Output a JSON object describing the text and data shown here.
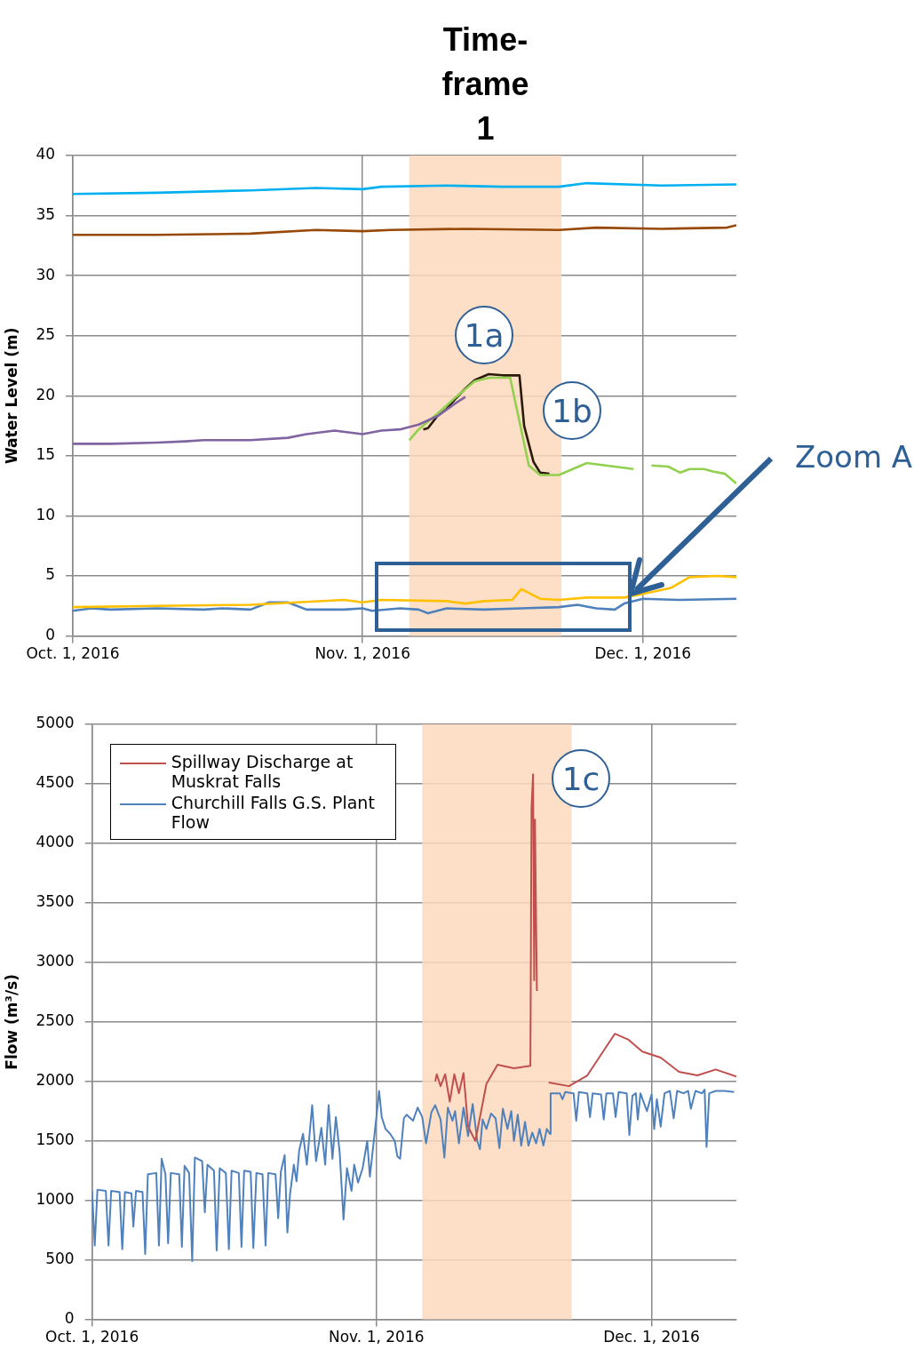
{
  "chart_data": [
    {
      "type": "line",
      "ylabel": "Water Level (m)",
      "xlim": [
        "2016-10-01",
        "2016-12-11"
      ],
      "xticks": [
        {
          "value": "2016-10-01",
          "label": "Oct. 1, 2016"
        },
        {
          "value": "2016-11-01",
          "label": "Nov. 1, 2016"
        },
        {
          "value": "2016-12-01",
          "label": "Dec. 1, 2016"
        }
      ],
      "ylim": [
        0,
        40
      ],
      "yticks": [
        0,
        5,
        10,
        15,
        20,
        25,
        30,
        35,
        40
      ],
      "grid": true,
      "legend": false,
      "bands": [
        {
          "axis": "x",
          "from": "2016-11-06",
          "to": "2016-11-22T07:00",
          "label": "Time-frame 1",
          "color": "#fcd9bc"
        }
      ],
      "annotations": [
        "1a",
        "1b",
        "Zoom A"
      ],
      "series": [
        {
          "color": "#00b0f0",
          "x": [
            "2016-10-01",
            "2016-10-10",
            "2016-10-20",
            "2016-10-27",
            "2016-11-01",
            "2016-11-03",
            "2016-11-10",
            "2016-11-16",
            "2016-11-22",
            "2016-11-25",
            "2016-12-03",
            "2016-12-11"
          ],
          "values": [
            36.8,
            36.9,
            37.1,
            37.3,
            37.2,
            37.4,
            37.5,
            37.4,
            37.4,
            37.7,
            37.5,
            37.6
          ]
        },
        {
          "color": "#984807",
          "x": [
            "2016-10-01",
            "2016-10-10",
            "2016-10-20",
            "2016-10-27",
            "2016-11-01",
            "2016-11-04",
            "2016-11-12",
            "2016-11-22",
            "2016-11-26",
            "2016-12-03",
            "2016-12-10",
            "2016-12-11"
          ],
          "values": [
            33.4,
            33.4,
            33.5,
            33.8,
            33.7,
            33.8,
            33.9,
            33.8,
            34.0,
            33.9,
            34.0,
            34.2
          ]
        },
        {
          "color": "#8064a2",
          "x": [
            "2016-10-01",
            "2016-10-05",
            "2016-10-10",
            "2016-10-13",
            "2016-10-15",
            "2016-10-20",
            "2016-10-24",
            "2016-10-26",
            "2016-10-29",
            "2016-11-01",
            "2016-11-03",
            "2016-11-05",
            "2016-11-07",
            "2016-11-09",
            "2016-11-11",
            "2016-11-12"
          ],
          "values": [
            16.0,
            16.0,
            16.1,
            16.2,
            16.3,
            16.3,
            16.5,
            16.8,
            17.1,
            16.8,
            17.1,
            17.2,
            17.6,
            18.3,
            19.4,
            19.9
          ]
        },
        {
          "color": "#92d050",
          "x": [
            "2016-11-06",
            "2016-11-07",
            "2016-11-09",
            "2016-11-11",
            "2016-11-13",
            "2016-11-14T14:00",
            "2016-11-16T19:00",
            "2016-11-18T19:00",
            "2016-11-20",
            "2016-11-22",
            "2016-11-25",
            "2016-11-30",
            "2016-11-30T12:00",
            "2016-12-01T22:00",
            "2016-12-03T17:00",
            "2016-12-05",
            "2016-12-06",
            "2016-12-07T12:00",
            "2016-12-08T12:00",
            "2016-12-09T19:00",
            "2016-12-11"
          ],
          "values": [
            16.3,
            17.2,
            18.5,
            19.9,
            21.2,
            21.5,
            21.5,
            14.2,
            13.4,
            13.4,
            14.4,
            13.9,
            null,
            14.2,
            14.1,
            13.6,
            13.9,
            13.9,
            13.7,
            13.5,
            12.7
          ]
        },
        {
          "color": "#2a1a0a",
          "x": [
            "2016-11-07T12:00",
            "2016-11-08",
            "2016-11-09",
            "2016-11-10",
            "2016-11-11",
            "2016-11-12",
            "2016-11-13",
            "2016-11-14T12:00",
            "2016-11-16",
            "2016-11-17T19:00",
            "2016-11-18T07:00",
            "2016-11-19T07:00",
            "2016-11-20",
            "2016-11-21"
          ],
          "values": [
            17.2,
            17.3,
            18.3,
            18.9,
            19.8,
            20.6,
            21.3,
            21.8,
            21.7,
            21.7,
            17.5,
            14.5,
            13.6,
            13.5
          ]
        },
        {
          "color": "#ffc000",
          "x": [
            "2016-10-01",
            "2016-10-10",
            "2016-10-20",
            "2016-10-30",
            "2016-11-01",
            "2016-11-03",
            "2016-11-10",
            "2016-11-12",
            "2016-11-14",
            "2016-11-17",
            "2016-11-18",
            "2016-11-20",
            "2016-11-22",
            "2016-11-25",
            "2016-11-29",
            "2016-12-01",
            "2016-12-04",
            "2016-12-06",
            "2016-12-09",
            "2016-12-11"
          ],
          "values": [
            2.4,
            2.5,
            2.6,
            3.0,
            2.8,
            3.0,
            2.9,
            2.7,
            2.9,
            3.0,
            3.9,
            3.1,
            3.0,
            3.2,
            3.2,
            3.5,
            4.0,
            4.9,
            5.0,
            4.9
          ]
        },
        {
          "color": "#4f81bd",
          "x": [
            "2016-10-01",
            "2016-10-03",
            "2016-10-05",
            "2016-10-10",
            "2016-10-15",
            "2016-10-17",
            "2016-10-20",
            "2016-10-22",
            "2016-10-24",
            "2016-10-26",
            "2016-10-30",
            "2016-11-01",
            "2016-11-02",
            "2016-11-05",
            "2016-11-07",
            "2016-11-08",
            "2016-11-10",
            "2016-11-14",
            "2016-11-18",
            "2016-11-22",
            "2016-11-24",
            "2016-11-26",
            "2016-11-28",
            "2016-11-29",
            "2016-12-01",
            "2016-12-05",
            "2016-12-11"
          ],
          "values": [
            2.1,
            2.3,
            2.2,
            2.3,
            2.2,
            2.3,
            2.2,
            2.8,
            2.8,
            2.2,
            2.2,
            2.3,
            2.1,
            2.3,
            2.2,
            1.9,
            2.3,
            2.2,
            2.3,
            2.4,
            2.6,
            2.3,
            2.2,
            2.7,
            3.1,
            3.0,
            3.1
          ]
        }
      ]
    },
    {
      "type": "line",
      "ylabel": "Flow (m³/s)",
      "xlim": [
        "2016-10-01",
        "2016-12-10T06:00"
      ],
      "xticks": [
        {
          "value": "2016-10-01",
          "label": "Oct. 1, 2016"
        },
        {
          "value": "2016-11-01",
          "label": "Nov. 1, 2016"
        },
        {
          "value": "2016-12-01",
          "label": "Dec. 1, 2016"
        }
      ],
      "ylim": [
        0,
        5000
      ],
      "yticks": [
        0,
        500,
        1000,
        1500,
        2000,
        2500,
        3000,
        3500,
        4000,
        4500,
        5000
      ],
      "grid": true,
      "legend": "top left",
      "bands": [
        {
          "axis": "x",
          "from": "2016-11-06",
          "to": "2016-11-22T07:00",
          "color": "#fcd9bc"
        }
      ],
      "annotations": [
        "1c"
      ],
      "series": [
        {
          "name": "Spillway Discharge at Muskrat Falls",
          "color": "#c0504d",
          "x": [
            "2016-11-07T10:00",
            "2016-11-07T14:00",
            "2016-11-08",
            "2016-11-08T12:00",
            "2016-11-09",
            "2016-11-09T12:00",
            "2016-11-10",
            "2016-11-10T12:00",
            "2016-11-11",
            "2016-11-11T19:00",
            "2016-11-13",
            "2016-11-14T05:00",
            "2016-11-16",
            "2016-11-17T19:00",
            "2016-11-17T22:00",
            "2016-11-18T02:00",
            "2016-11-18T05:00",
            "2016-11-18T07:00",
            "2016-11-18T12:00",
            "2016-11-19",
            "2016-11-19T19:00",
            "2016-11-22",
            "2016-11-24",
            "2016-11-27",
            "2016-11-28T12:00",
            "2016-11-30",
            "2016-12-02",
            "2016-12-04",
            "2016-12-06",
            "2016-12-08",
            "2016-12-10T06:00"
          ],
          "values": [
            2000,
            2060,
            1960,
            2060,
            1830,
            2060,
            1900,
            2070,
            1620,
            1500,
            1980,
            2140,
            2110,
            2130,
            4300,
            4580,
            2850,
            4200,
            2760,
            null,
            1990,
            1960,
            2050,
            2400,
            2350,
            2250,
            2200,
            2080,
            2050,
            2100,
            2040
          ]
        },
        {
          "name": "Churchill Falls G.S. Plant Flow",
          "color": "#4f81bd",
          "x": [
            "2016-10-01",
            "2016-10-01T07:00",
            "2016-10-01T14:00",
            "2016-10-02T12:00",
            "2016-10-02T19:00",
            "2016-10-03T02:00",
            "2016-10-04",
            "2016-10-04T07:00",
            "2016-10-04T14:00",
            "2016-10-05T07:00",
            "2016-10-05T12:00",
            "2016-10-05T19:00",
            "2016-10-06T12:00",
            "2016-10-06T19:00",
            "2016-10-07T02:00",
            "2016-10-08",
            "2016-10-08T07:00",
            "2016-10-08T14:00",
            "2016-10-09",
            "2016-10-09T07:00",
            "2016-10-09T14:00",
            "2016-10-10T12:00",
            "2016-10-10T19:00",
            "2016-10-11T02:00",
            "2016-10-11T14:00",
            "2016-10-11T22:00",
            "2016-10-12T05:00",
            "2016-10-13",
            "2016-10-13T07:00",
            "2016-10-13T14:00",
            "2016-10-14T07:00",
            "2016-10-14T14:00",
            "2016-10-14T22:00",
            "2016-10-15T14:00",
            "2016-10-15T22:00",
            "2016-10-16T05:00",
            "2016-10-17",
            "2016-10-17T07:00",
            "2016-10-17T14:00",
            "2016-10-18T07:00",
            "2016-10-18T14:00",
            "2016-10-18T22:00",
            "2016-10-19T14:00",
            "2016-10-19T22:00",
            "2016-10-20T05:00",
            "2016-10-21",
            "2016-10-21T07:00",
            "2016-10-21T14:00",
            "2016-10-22",
            "2016-10-22T07:00",
            "2016-10-22T14:00",
            "2016-10-23",
            "2016-10-23T07:00",
            "2016-10-23T14:00",
            "2016-10-24",
            "2016-10-24T10:00",
            "2016-10-25",
            "2016-10-25T10:00",
            "2016-10-26",
            "2016-10-26T10:00",
            "2016-10-26T19:00",
            "2016-10-27T05:00",
            "2016-10-27T14:00",
            "2016-10-28",
            "2016-10-28T10:00",
            "2016-10-28T19:00",
            "2016-10-29T07:00",
            "2016-10-29T14:00",
            "2016-10-30",
            "2016-10-30T12:00",
            "2016-10-31",
            "2016-10-31T07:00",
            "2016-11-01",
            "2016-11-01T07:00",
            "2016-11-01T14:00",
            "2016-11-02",
            "2016-11-02T12:00",
            "2016-11-03",
            "2016-11-03T07:00",
            "2016-11-03T14:00",
            "2016-11-04",
            "2016-11-04T07:00",
            "2016-11-05",
            "2016-11-05T12:00",
            "2016-11-06",
            "2016-11-06T10:00",
            "2016-11-07",
            "2016-11-07T10:00",
            "2016-11-08",
            "2016-11-08T10:00",
            "2016-11-08T19:00",
            "2016-11-09T07:00",
            "2016-11-09T14:00",
            "2016-11-10",
            "2016-11-10T12:00",
            "2016-11-11",
            "2016-11-11T12:00",
            "2016-11-12",
            "2016-11-12T07:00",
            "2016-11-12T14:00",
            "2016-11-13",
            "2016-11-13T12:00",
            "2016-11-14",
            "2016-11-14T10:00",
            "2016-11-14T19:00",
            "2016-11-15T07:00",
            "2016-11-15T17:00",
            "2016-11-16",
            "2016-11-16T10:00",
            "2016-11-16T19:00",
            "2016-11-17T05:00",
            "2016-11-17T14:00",
            "2016-11-18",
            "2016-11-18T10:00",
            "2016-11-18T19:00",
            "2016-11-19T05:00",
            "2016-11-19T14:00",
            "2016-11-19T22:00",
            "2016-11-20",
            "2016-11-21",
            "2016-11-21T07:00",
            "2016-11-21T14:00",
            "2016-11-22T12:00",
            "2016-11-22T19:00",
            "2016-11-23T02:00",
            "2016-11-24",
            "2016-11-24T07:00",
            "2016-11-24T14:00",
            "2016-11-25T12:00",
            "2016-11-25T19:00",
            "2016-11-26T02:00",
            "2016-11-26T19:00",
            "2016-11-27T02:00",
            "2016-11-27T10:00",
            "2016-11-28T07:00",
            "2016-11-28T14:00",
            "2016-11-28T22:00",
            "2016-11-29T07:00",
            "2016-11-29T12:00",
            "2016-11-29T19:00",
            "2016-11-30T12:00",
            "2016-12-01",
            "2016-12-01T07:00",
            "2016-12-01T14:00",
            "2016-12-02",
            "2016-12-02T10:00",
            "2016-12-03",
            "2016-12-03T10:00",
            "2016-12-03T19:00",
            "2016-12-04T12:00",
            "2016-12-05",
            "2016-12-05T07:00",
            "2016-12-05T19:00",
            "2016-12-06T12:00",
            "2016-12-06T19:00",
            "2016-12-07",
            "2016-12-07T07:00",
            "2016-12-08",
            "2016-12-09",
            "2016-12-10"
          ],
          "values": [
            1080,
            620,
            1090,
            1080,
            620,
            1080,
            1070,
            590,
            1070,
            1060,
            780,
            1080,
            1070,
            550,
            1220,
            1230,
            620,
            1350,
            1220,
            640,
            1230,
            1220,
            610,
            1290,
            1230,
            490,
            1360,
            1330,
            900,
            1300,
            1250,
            580,
            1270,
            1230,
            590,
            1250,
            1230,
            610,
            1250,
            1240,
            600,
            1230,
            1220,
            620,
            1230,
            1220,
            850,
            1240,
            1380,
            730,
            1050,
            1300,
            1160,
            1420,
            1560,
            1300,
            1800,
            1330,
            1610,
            1300,
            1800,
            1350,
            1700,
            1400,
            840,
            1270,
            1080,
            1300,
            1150,
            1270,
            1500,
            1200,
            1700,
            1920,
            1700,
            1600,
            1560,
            1500,
            1370,
            1350,
            1690,
            1720,
            1670,
            1780,
            1700,
            1480,
            1740,
            1800,
            1680,
            1360,
            1780,
            1670,
            1750,
            1480,
            1780,
            1540,
            1810,
            1500,
            1430,
            1680,
            1600,
            1730,
            1690,
            1440,
            1770,
            1600,
            1750,
            1500,
            1720,
            1460,
            1660,
            1460,
            1570,
            1480,
            1600,
            1460,
            1600,
            1560,
            1900,
            1900,
            1850,
            1910,
            1900,
            1670,
            1910,
            1900,
            1700,
            1900,
            1890,
            1680,
            1900,
            1900,
            1700,
            1910,
            1900,
            1550,
            1880,
            1900,
            1680,
            1900,
            1750,
            1890,
            1600,
            1850,
            1620,
            1900,
            1920,
            1690,
            1920,
            1900,
            1920,
            1770,
            1920,
            1900,
            1930,
            1450,
            1900,
            1920,
            1920,
            1910
          ]
        }
      ]
    }
  ]
}
